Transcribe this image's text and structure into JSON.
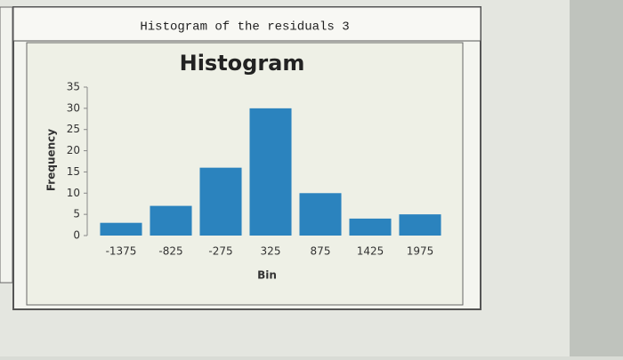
{
  "window_title": "Histogram of the residuals 3",
  "chart_data": {
    "type": "bar",
    "title": "Histogram",
    "xlabel": "Bin",
    "ylabel": "Frequency",
    "categories": [
      "-1375",
      "-825",
      "-275",
      "325",
      "875",
      "1425",
      "1975"
    ],
    "values": [
      3,
      7,
      16,
      30,
      10,
      4,
      5
    ],
    "color": "#2b83be",
    "ylim": [
      0,
      35
    ],
    "yticks": [
      0,
      5,
      10,
      15,
      20,
      25,
      30,
      35
    ]
  }
}
